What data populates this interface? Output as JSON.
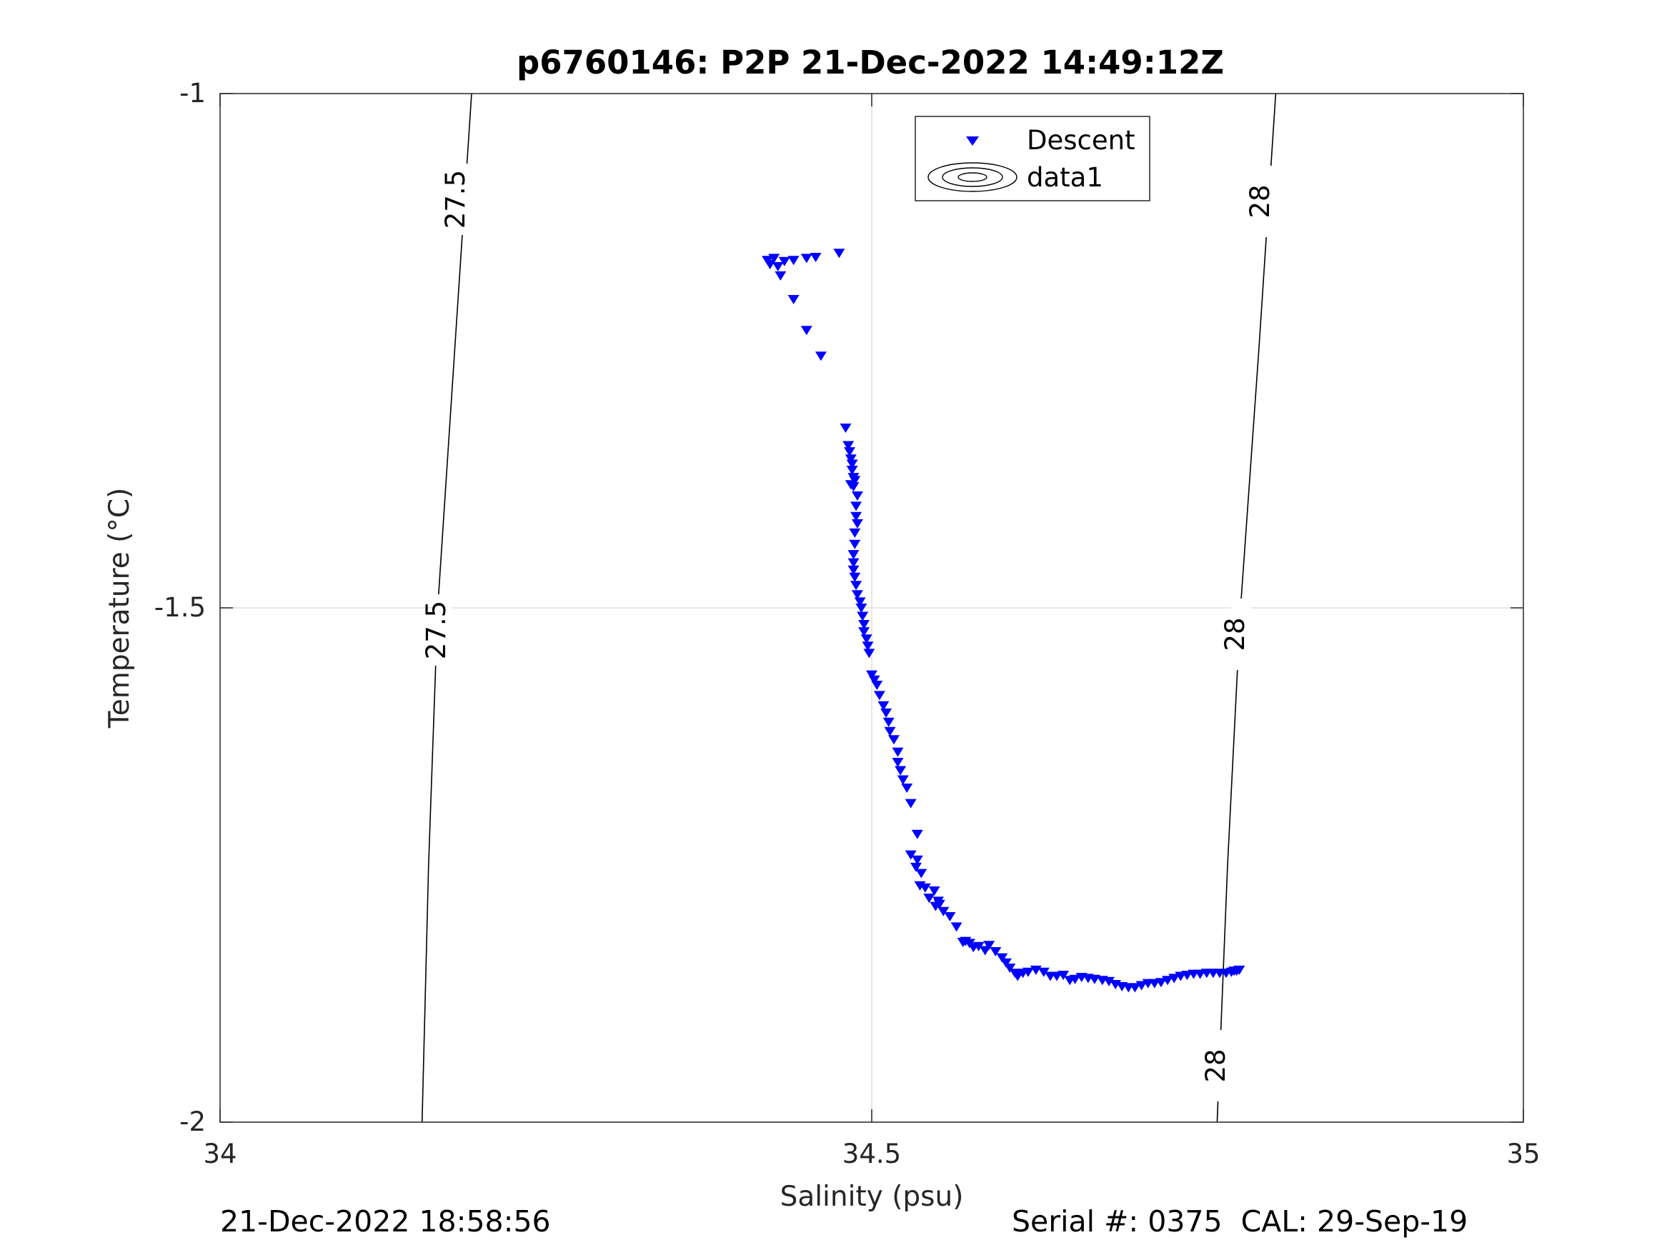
{
  "chart_data": {
    "type": "scatter",
    "title": "p6760146: P2P 21-Dec-2022 14:49:12Z",
    "xlabel": "Salinity (psu)",
    "ylabel": "Temperature (°C)",
    "xlim": [
      34,
      35
    ],
    "ylim": [
      -2,
      -1
    ],
    "xticks": [
      34,
      34.5,
      35
    ],
    "xtick_labels": [
      "34",
      "34.5",
      "35"
    ],
    "yticks": [
      -2,
      -1.5,
      -1
    ],
    "ytick_labels": [
      "-2",
      "-1.5",
      "-1"
    ],
    "grid": true,
    "legend": {
      "placement": "top-center",
      "entries": [
        "Descent",
        "data1"
      ]
    },
    "series": [
      {
        "name": "Descent",
        "color": "#0000ff",
        "marker": "triangle-down",
        "points": [
          [
            34.425,
            -1.16
          ],
          [
            34.42,
            -1.162
          ],
          [
            34.422,
            -1.166
          ],
          [
            34.428,
            -1.168
          ],
          [
            34.433,
            -1.163
          ],
          [
            34.44,
            -1.162
          ],
          [
            34.45,
            -1.16
          ],
          [
            34.457,
            -1.159
          ],
          [
            34.475,
            -1.155
          ],
          [
            34.43,
            -1.177
          ],
          [
            34.44,
            -1.2
          ],
          [
            34.45,
            -1.23
          ],
          [
            34.461,
            -1.255
          ],
          [
            34.48,
            -1.325
          ],
          [
            34.482,
            -1.342
          ],
          [
            34.483,
            -1.348
          ],
          [
            34.484,
            -1.355
          ],
          [
            34.485,
            -1.36
          ],
          [
            34.485,
            -1.366
          ],
          [
            34.486,
            -1.373
          ],
          [
            34.484,
            -1.38
          ],
          [
            34.486,
            -1.382
          ],
          [
            34.487,
            -1.376
          ],
          [
            34.489,
            -1.391
          ],
          [
            34.488,
            -1.401
          ],
          [
            34.488,
            -1.411
          ],
          [
            34.489,
            -1.418
          ],
          [
            34.487,
            -1.427
          ],
          [
            34.487,
            -1.438
          ],
          [
            34.486,
            -1.448
          ],
          [
            34.486,
            -1.456
          ],
          [
            34.486,
            -1.463
          ],
          [
            34.487,
            -1.47
          ],
          [
            34.488,
            -1.478
          ],
          [
            34.489,
            -1.487
          ],
          [
            34.491,
            -1.494
          ],
          [
            34.492,
            -1.5
          ],
          [
            34.493,
            -1.508
          ],
          [
            34.494,
            -1.516
          ],
          [
            34.494,
            -1.523
          ],
          [
            34.496,
            -1.53
          ],
          [
            34.497,
            -1.537
          ],
          [
            34.498,
            -1.544
          ],
          [
            34.5,
            -1.565
          ],
          [
            34.502,
            -1.57
          ],
          [
            34.504,
            -1.575
          ],
          [
            34.506,
            -1.585
          ],
          [
            34.509,
            -1.595
          ],
          [
            34.511,
            -1.602
          ],
          [
            34.513,
            -1.611
          ],
          [
            34.514,
            -1.62
          ],
          [
            34.517,
            -1.628
          ],
          [
            34.52,
            -1.64
          ],
          [
            34.52,
            -1.65
          ],
          [
            34.522,
            -1.658
          ],
          [
            34.524,
            -1.667
          ],
          [
            34.527,
            -1.675
          ],
          [
            34.53,
            -1.69
          ],
          [
            34.535,
            -1.72
          ],
          [
            34.53,
            -1.74
          ],
          [
            34.535,
            -1.745
          ],
          [
            34.534,
            -1.752
          ],
          [
            34.538,
            -1.758
          ],
          [
            34.537,
            -1.77
          ],
          [
            34.541,
            -1.772
          ],
          [
            34.544,
            -1.782
          ],
          [
            34.548,
            -1.775
          ],
          [
            34.549,
            -1.79
          ],
          [
            34.551,
            -1.785
          ],
          [
            34.552,
            -1.788
          ],
          [
            34.555,
            -1.795
          ],
          [
            34.56,
            -1.8
          ],
          [
            34.565,
            -1.81
          ],
          [
            34.57,
            -1.825
          ],
          [
            34.572,
            -1.824
          ],
          [
            34.575,
            -1.826
          ],
          [
            34.578,
            -1.83
          ],
          [
            34.582,
            -1.829
          ],
          [
            34.587,
            -1.833
          ],
          [
            34.59,
            -1.828
          ],
          [
            34.595,
            -1.834
          ],
          [
            34.6,
            -1.84
          ],
          [
            34.603,
            -1.845
          ],
          [
            34.606,
            -1.85
          ],
          [
            34.61,
            -1.855
          ],
          [
            34.612,
            -1.858
          ],
          [
            34.616,
            -1.855
          ],
          [
            34.62,
            -1.854
          ],
          [
            34.626,
            -1.852
          ],
          [
            34.632,
            -1.854
          ],
          [
            34.637,
            -1.858
          ],
          [
            34.642,
            -1.858
          ],
          [
            34.647,
            -1.857
          ],
          [
            34.652,
            -1.862
          ],
          [
            34.656,
            -1.861
          ],
          [
            34.661,
            -1.859
          ],
          [
            34.666,
            -1.86
          ],
          [
            34.671,
            -1.861
          ],
          [
            34.677,
            -1.862
          ],
          [
            34.682,
            -1.863
          ],
          [
            34.687,
            -1.866
          ],
          [
            34.692,
            -1.868
          ],
          [
            34.697,
            -1.869
          ],
          [
            34.702,
            -1.869
          ],
          [
            34.707,
            -1.867
          ],
          [
            34.712,
            -1.865
          ],
          [
            34.717,
            -1.865
          ],
          [
            34.722,
            -1.864
          ],
          [
            34.727,
            -1.862
          ],
          [
            34.732,
            -1.86
          ],
          [
            34.737,
            -1.858
          ],
          [
            34.742,
            -1.857
          ],
          [
            34.747,
            -1.856
          ],
          [
            34.752,
            -1.856
          ],
          [
            34.757,
            -1.855
          ],
          [
            34.762,
            -1.855
          ],
          [
            34.767,
            -1.855
          ],
          [
            34.772,
            -1.855
          ],
          [
            34.776,
            -1.854
          ],
          [
            34.778,
            -1.853
          ],
          [
            34.78,
            -1.853
          ],
          [
            34.782,
            -1.852
          ]
        ]
      },
      {
        "name": "data1",
        "type": "contour",
        "color": "#000000",
        "contour_labels": [
          "27.5",
          "28"
        ],
        "lines": [
          {
            "level": "27.5",
            "points": [
              [
                34.155,
                -2
              ],
              [
                34.16,
                -1.75
              ],
              [
                34.167,
                -1.5
              ],
              [
                34.18,
                -1.25
              ],
              [
                34.193,
                -1
              ]
            ]
          },
          {
            "level": "28",
            "points": [
              [
                34.765,
                -2
              ],
              [
                34.773,
                -1.75
              ],
              [
                34.783,
                -1.5
              ],
              [
                34.797,
                -1.25
              ],
              [
                34.81,
                -1
              ]
            ]
          }
        ]
      }
    ]
  },
  "footer": {
    "left": "21-Dec-2022 18:58:56",
    "right": "Serial #: 0375  CAL: 29-Sep-19"
  }
}
